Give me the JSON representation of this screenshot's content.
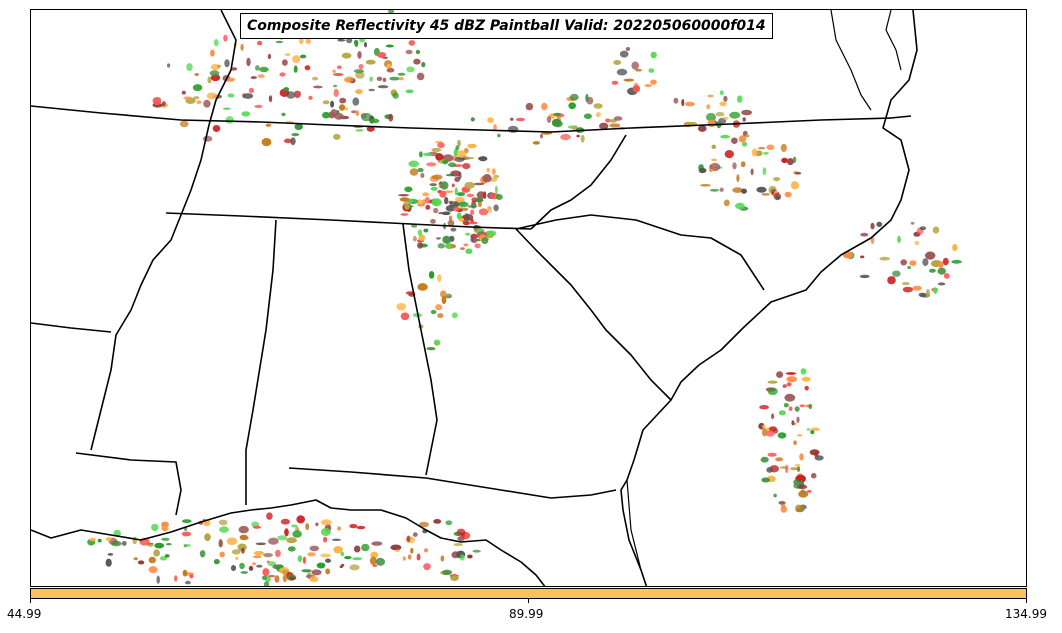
{
  "title": "Composite Reflectivity 45 dBZ Paintball Valid: 202205060000f014",
  "colorbar": {
    "color": "#ffc15e",
    "ticks": [
      "44.99",
      "89.99",
      "134.99"
    ]
  },
  "member_colors": [
    "#ff5555",
    "#ffb347",
    "#54d954",
    "#3f8f3f",
    "#b5a642",
    "#8b3a3a",
    "#a05a5a",
    "#555555",
    "#ff8c42",
    "#2a9d2a",
    "#cc2222",
    "#c47a1c"
  ],
  "colors": {
    "boundary": "#000000",
    "background": "#ffffff"
  }
}
